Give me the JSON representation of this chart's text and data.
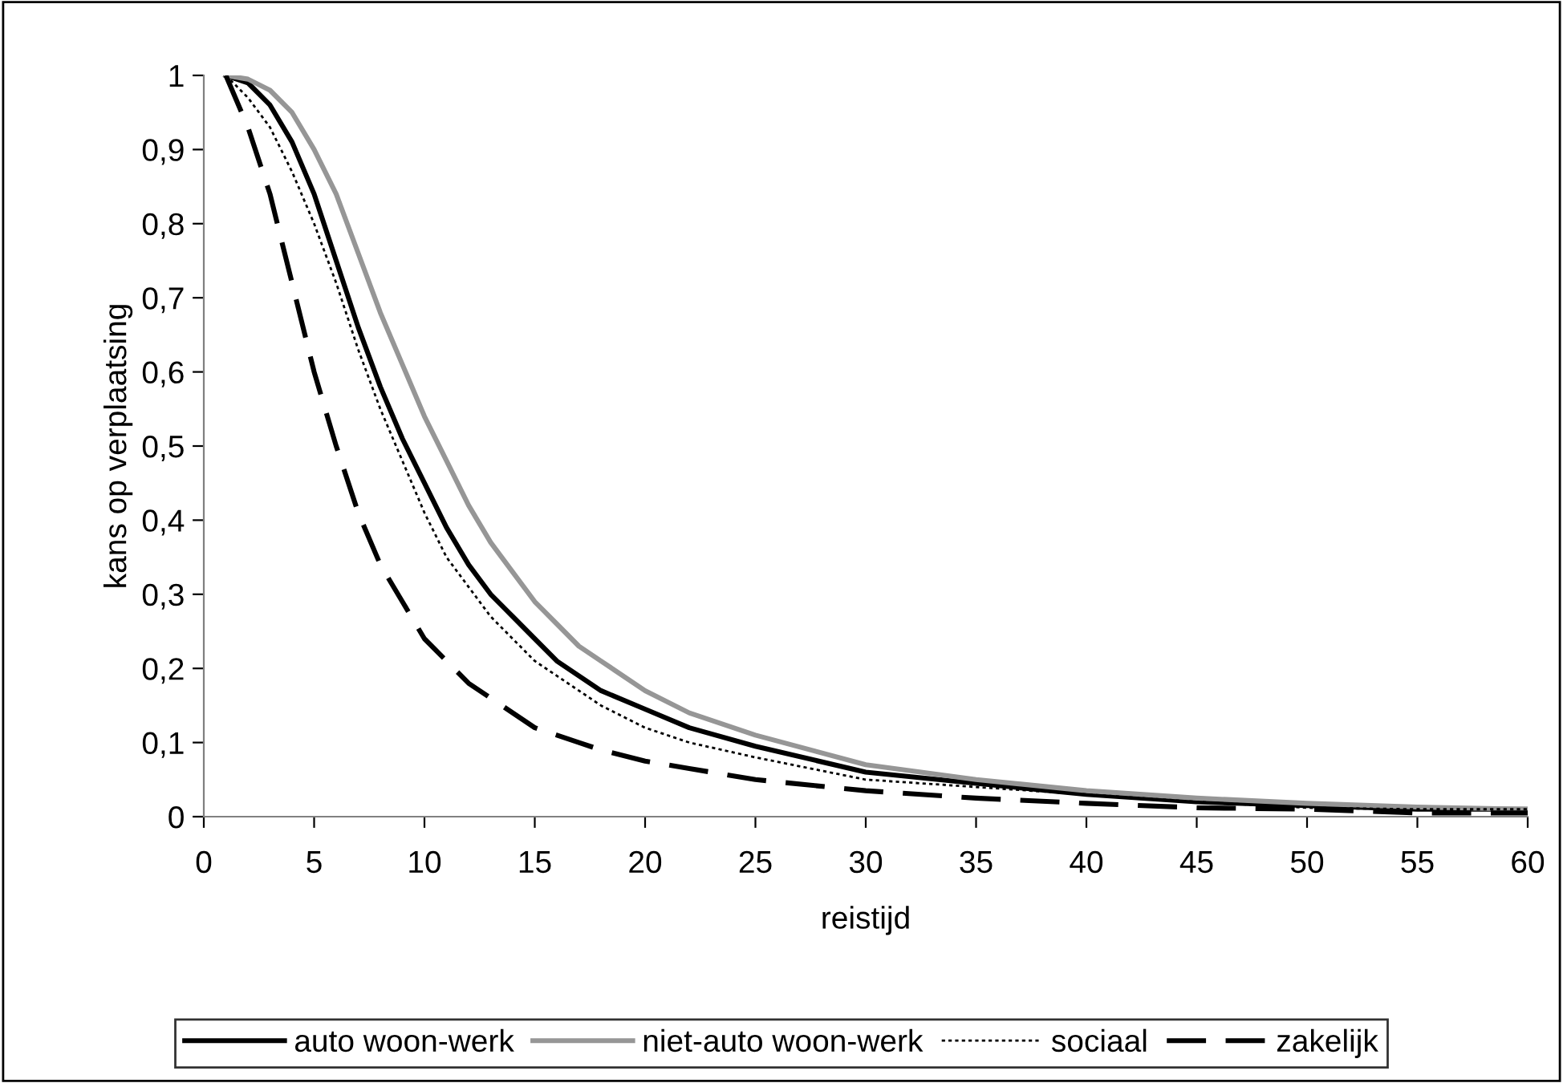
{
  "chart_data": {
    "type": "line",
    "xlabel": "reistijd",
    "ylabel": "kans op verplaatsing",
    "x": [
      1,
      2,
      3,
      4,
      5,
      6,
      7,
      8,
      9,
      10,
      11,
      12,
      13,
      14,
      15,
      16,
      17,
      18,
      20,
      22,
      25,
      30,
      35,
      40,
      45,
      50,
      55,
      60
    ],
    "series": [
      {
        "name": "auto woon-werk",
        "color": "#000000",
        "line_style": "solid",
        "values": [
          1.0,
          0.99,
          0.96,
          0.91,
          0.84,
          0.75,
          0.66,
          0.58,
          0.51,
          0.45,
          0.39,
          0.34,
          0.3,
          0.27,
          0.24,
          0.21,
          0.19,
          0.17,
          0.145,
          0.12,
          0.095,
          0.06,
          0.045,
          0.03,
          0.02,
          0.015,
          0.01,
          0.01
        ]
      },
      {
        "name": "niet-auto woon-werk",
        "color": "#969696",
        "line_style": "solid",
        "values": [
          1.0,
          0.995,
          0.98,
          0.95,
          0.9,
          0.84,
          0.76,
          0.68,
          0.61,
          0.54,
          0.48,
          0.42,
          0.37,
          0.33,
          0.29,
          0.26,
          0.23,
          0.21,
          0.17,
          0.14,
          0.11,
          0.07,
          0.05,
          0.035,
          0.025,
          0.018,
          0.013,
          0.01
        ]
      },
      {
        "name": "sociaal",
        "color": "#000000",
        "line_style": "dotted",
        "values": [
          1.0,
          0.97,
          0.93,
          0.87,
          0.8,
          0.72,
          0.63,
          0.55,
          0.48,
          0.41,
          0.35,
          0.31,
          0.27,
          0.24,
          0.21,
          0.19,
          0.17,
          0.15,
          0.12,
          0.1,
          0.08,
          0.05,
          0.04,
          0.03,
          0.02,
          0.012,
          0.01,
          0.01
        ]
      },
      {
        "name": "zakelijk",
        "color": "#000000",
        "line_style": "dashed",
        "values": [
          1.0,
          0.93,
          0.84,
          0.72,
          0.6,
          0.5,
          0.41,
          0.34,
          0.29,
          0.24,
          0.21,
          0.18,
          0.16,
          0.14,
          0.12,
          0.11,
          0.1,
          0.09,
          0.075,
          0.065,
          0.05,
          0.035,
          0.025,
          0.018,
          0.012,
          0.01,
          0.005,
          0.005
        ]
      }
    ],
    "xlim": [
      0,
      60
    ],
    "xticks": [
      0,
      5,
      10,
      15,
      20,
      25,
      30,
      35,
      40,
      45,
      50,
      55,
      60
    ],
    "ylim": [
      0,
      1
    ],
    "yticks": [
      0,
      {
        "value": 0.1,
        "label": "0,1"
      },
      {
        "value": 0.2,
        "label": "0,2"
      },
      {
        "value": 0.3,
        "label": "0,3"
      },
      {
        "value": 0.4,
        "label": "0,4"
      },
      {
        "value": 0.5,
        "label": "0,5"
      },
      {
        "value": 0.6,
        "label": "0,6"
      },
      {
        "value": 0.7,
        "label": "0,7"
      },
      {
        "value": 0.8,
        "label": "0,8"
      },
      {
        "value": 0.9,
        "label": "0,9"
      },
      1
    ],
    "grid": false,
    "legend": "bottom",
    "marker": "none"
  }
}
